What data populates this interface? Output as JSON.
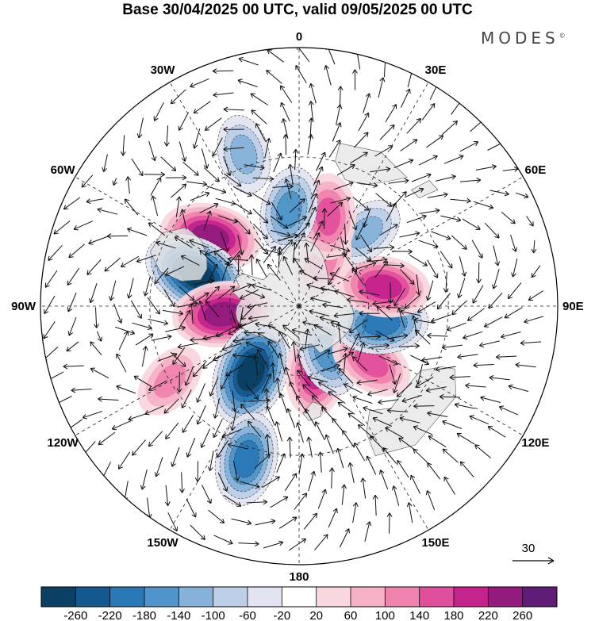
{
  "header": {
    "title": "Base 30/04/2025 00 UTC, valid 09/05/2025 00 UTC",
    "brand": "MODES",
    "brand_mark": "©"
  },
  "map": {
    "projection": "south-polar-stereographic",
    "longitude_labels": [
      "0",
      "30E",
      "60E",
      "90E",
      "120E",
      "150E",
      "180",
      "150W",
      "120W",
      "90W",
      "60W",
      "30W"
    ],
    "reference_vector": {
      "label": "30"
    },
    "land_color": "#e7e7e7",
    "features": [
      {
        "name": "anomaly-positive",
        "lon": -52,
        "colat": 47,
        "value": 220
      },
      {
        "name": "anomaly-negative",
        "lon": -73,
        "colat": 45,
        "value": -260
      },
      {
        "name": "anomaly-positive",
        "lon": -96,
        "colat": 33,
        "value": 220
      },
      {
        "name": "anomaly-negative",
        "lon": -144,
        "colat": 35,
        "value": -260
      },
      {
        "name": "anomaly-positive",
        "lon": 165,
        "colat": 29,
        "value": 180
      },
      {
        "name": "anomaly-negative",
        "lon": 149,
        "colat": 24,
        "value": -140
      },
      {
        "name": "anomaly-positive",
        "lon": 128,
        "colat": 39,
        "value": 140
      },
      {
        "name": "anomaly-negative",
        "lon": 102,
        "colat": 36,
        "value": -180
      },
      {
        "name": "anomaly-positive",
        "lon": 77,
        "colat": 37,
        "value": 180
      },
      {
        "name": "anomaly-negative",
        "lon": 42,
        "colat": 42,
        "value": -100
      },
      {
        "name": "anomaly-positive",
        "lon": 29,
        "colat": 22,
        "value": 100
      },
      {
        "name": "anomaly-positive",
        "lon": 18,
        "colat": 40,
        "value": 140
      },
      {
        "name": "anomaly-negative",
        "lon": -6,
        "colat": 41,
        "value": -140
      },
      {
        "name": "anomaly-negative",
        "lon": -20,
        "colat": 64,
        "value": -100
      },
      {
        "name": "anomaly-negative",
        "lon": -161,
        "colat": 64,
        "value": -180
      },
      {
        "name": "anomaly-positive",
        "lon": -120,
        "colat": 60,
        "value": 100
      }
    ]
  },
  "colorbar": {
    "levels": [
      -260,
      -220,
      -180,
      -140,
      -100,
      -60,
      -20,
      20,
      60,
      100,
      140,
      180,
      220,
      260
    ],
    "tick_labels": [
      "-260",
      "-220",
      "-180",
      "-140",
      "-100",
      "-60",
      "-20",
      "20",
      "60",
      "100",
      "140",
      "180",
      "220",
      "260"
    ],
    "colors": [
      "#0b3f63",
      "#13598f",
      "#2a78b6",
      "#4f95c9",
      "#86b2da",
      "#bccfe7",
      "#e2e4f1",
      "#ffffff",
      "#f9d7de",
      "#f5b2c6",
      "#ef83ae",
      "#e04f9c",
      "#c4238c",
      "#921b7d",
      "#5f1d78"
    ]
  }
}
